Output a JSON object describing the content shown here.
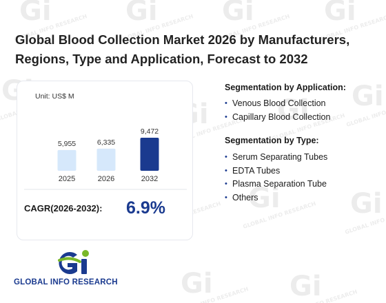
{
  "title": "Global Blood Collection Market 2026 by Manufacturers, Regions, Type and Application, Forecast to 2032",
  "watermark_text": "GLOBAL INFO RESEARCH",
  "chart": {
    "unit_label": "Unit: US$ M",
    "cagr_label": "CAGR(2026-2032):",
    "cagr_value": "6.9%"
  },
  "chart_data": {
    "type": "bar",
    "categories": [
      "2025",
      "2026",
      "2032"
    ],
    "values": [
      5955,
      6335,
      9472
    ],
    "value_labels": [
      "5,955",
      "6,335",
      "9,472"
    ],
    "ylabel": "",
    "unit": "US$ M",
    "colors": [
      "#d6e8fb",
      "#d6e8fb",
      "#1a3a8f"
    ]
  },
  "segmentation": {
    "application_title": "Segmentation by Application:",
    "application_items": [
      "Venous Blood Collection",
      "Capillary Blood Collection"
    ],
    "type_title": "Segmentation by Type:",
    "type_items": [
      "Serum Separating Tubes",
      "EDTA Tubes",
      "Plasma Separation Tube",
      "Others"
    ],
    "bullet": "•"
  },
  "logo": {
    "text": "GLOBAL INFO RESEARCH",
    "icon": "gi-logo-icon",
    "colors": {
      "blue": "#1a3a8f",
      "green": "#7ab829"
    }
  },
  "accent_color": "#1a3a8f"
}
